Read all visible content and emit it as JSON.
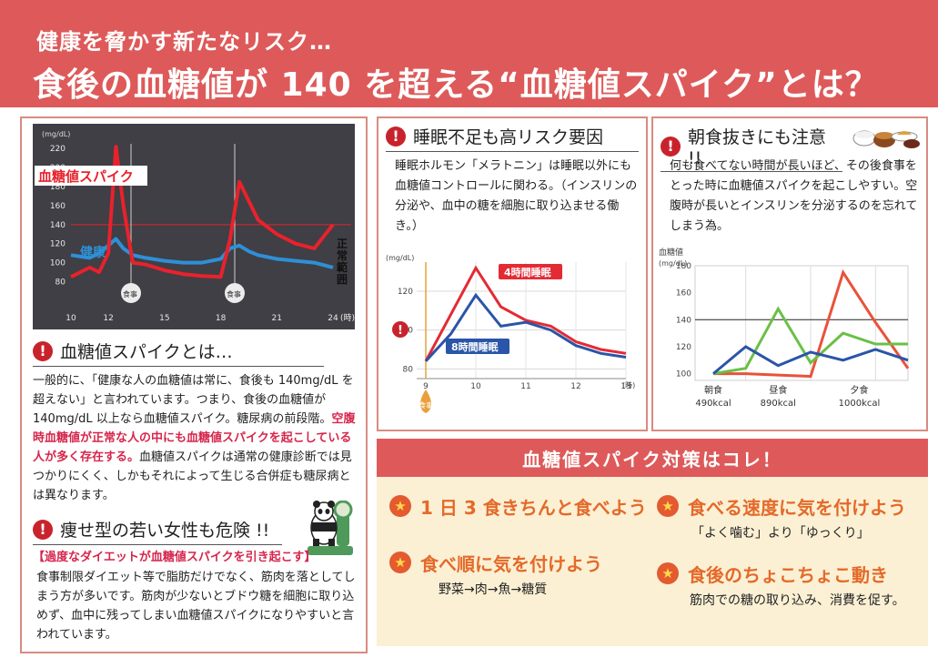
{
  "header": {
    "subtitle": "健康を脅かす新たなリスク…",
    "title": "食後の血糖値が 140 を超える“血糖値スパイク”とは？"
  },
  "left": {
    "chart": {
      "unit": "(mg/dL)",
      "spike_label": "血糖値スパイク",
      "healthy_label": "健康",
      "normal_range_label": "正常範囲",
      "meal_marker": "食事",
      "hour_unit": "(時)",
      "y_ticks": [
        "220",
        "200",
        "180",
        "160",
        "140",
        "120",
        "100",
        "80"
      ],
      "x_ticks": [
        "10",
        "12",
        "15",
        "18",
        "21",
        "24"
      ]
    },
    "spike_section": {
      "heading": "血糖値スパイクとは…",
      "p1": "一般的に、「健康な人の血糖値は常に、食後も 140mg/dL を超えない」と言われています。つまり、食後の血糖値が 140mg/dL 以上なら血糖値スパイク。糖尿病の前段階。",
      "p_red": "空腹時血糖値が正常な人の中にも血糖値スパイクを起こしている人が多く存在する。",
      "p2": "血糖値スパイクは通常の健康診断では見つかりにくく、しかもそれによって生じる合併症も糖尿病とは異なります。"
    },
    "thin_section": {
      "heading": "痩せ型の若い女性も危険 !!",
      "red_lead": "【過度なダイエットが血糖値スパイクを引き起こす】",
      "body": "食事制限ダイエット等で脂肪だけでなく、筋肉を落としてしまう方が多いです。筋肉が少ないとブドウ糖を細胞に取り込めず、血中に残ってしまい血糖値スパイクになりやすいと言われています。"
    }
  },
  "sleep": {
    "heading": "睡眠不足も高リスク要因",
    "body": "睡眠ホルモン「メラトニン」は睡眠以外にも血糖値コントロールに関わる。（インスリンの分泌や、血中の糖を細胞に取り込ませる働き。）",
    "unit": "(mg/dL)",
    "meal_label": "食事",
    "hour_unit": "(時)",
    "y_ticks": [
      "120",
      "100",
      "80"
    ],
    "x_ticks": [
      "9",
      "10",
      "11",
      "12",
      "13"
    ],
    "series4_label": "4時間睡眠",
    "series8_label": "8時間睡眠"
  },
  "breakfast": {
    "heading": "朝食抜きにも注意 !!",
    "body": "何も食べてない時間が長いほど、その後食事をとった時に血糖値スパイクを起こしやすい。空腹時が長いとインスリンを分泌するのを忘れてしまう為。",
    "ylabel1": "血糖値",
    "ylabel2": "(mg/dL)",
    "y_ticks": [
      "180",
      "160",
      "140",
      "120",
      "100"
    ],
    "meals": [
      {
        "name": "朝食",
        "kcal": "490kcal"
      },
      {
        "name": "昼食",
        "kcal": "890kcal"
      },
      {
        "name": "夕食",
        "kcal": "1000kcal"
      }
    ]
  },
  "tips": {
    "band": "血糖値スパイク対策はコレ！",
    "items": [
      {
        "title": "1 日 3 食きちんと食べよう",
        "sub": ""
      },
      {
        "title": "食べる速度に気を付けよう",
        "sub": "「よく噛む」より「ゆっくり」"
      },
      {
        "title": "食べ順に気を付けよう",
        "sub": "野菜→肉→魚→糖質"
      },
      {
        "title": "食後のちょこちょこ動き",
        "sub": "筋肉での糖の取り込み、消費を促す。"
      }
    ]
  },
  "chart_data": [
    {
      "type": "line",
      "xlabel": "(時)",
      "ylabel": "(mg/dL)",
      "ylim": [
        70,
        225
      ],
      "x": [
        10,
        11,
        11.5,
        12,
        12.4,
        12.8,
        13.3,
        14,
        15,
        16,
        17,
        18,
        18.5,
        19,
        19.5,
        20,
        21,
        22,
        23,
        24
      ],
      "series": [
        {
          "name": "血糖値スパイク",
          "color": "#e8222c",
          "values": [
            85,
            95,
            90,
            110,
            222,
            160,
            100,
            98,
            92,
            88,
            86,
            85,
            125,
            185,
            165,
            145,
            130,
            120,
            115,
            140
          ]
        },
        {
          "name": "健康",
          "color": "#2f8fd6",
          "values": [
            108,
            105,
            110,
            118,
            125,
            115,
            108,
            105,
            102,
            100,
            100,
            104,
            115,
            118,
            112,
            108,
            104,
            102,
            100,
            95
          ]
        }
      ],
      "reference_line": 140
    },
    {
      "type": "line",
      "xlabel": "(時)",
      "ylabel": "(mg/dL)",
      "ylim": [
        75,
        135
      ],
      "x": [
        9,
        9.5,
        10,
        10.5,
        11,
        11.5,
        12,
        12.5,
        13
      ],
      "series": [
        {
          "name": "4時間睡眠",
          "color": "#e32b34",
          "values": [
            84,
            108,
            132,
            112,
            105,
            102,
            94,
            90,
            88
          ]
        },
        {
          "name": "8時間睡眠",
          "color": "#2a55a8",
          "values": [
            84,
            98,
            118,
            102,
            104,
            100,
            92,
            88,
            86
          ]
        }
      ]
    },
    {
      "type": "line",
      "ylabel": "血糖値 (mg/dL)",
      "ylim": [
        95,
        180
      ],
      "categories": [
        "朝食",
        "昼食",
        "夕食"
      ],
      "x": [
        0,
        0.5,
        1,
        1.5,
        2,
        2.5,
        3
      ],
      "series": [
        {
          "color": "#e8523a",
          "values": [
            100,
            100,
            99,
            98,
            175,
            138,
            104
          ]
        },
        {
          "color": "#6ac046",
          "values": [
            100,
            104,
            148,
            108,
            130,
            122,
            122
          ]
        },
        {
          "color": "#2a55a8",
          "values": [
            100,
            120,
            106,
            116,
            110,
            118,
            110
          ]
        }
      ],
      "reference_line": 140
    }
  ]
}
